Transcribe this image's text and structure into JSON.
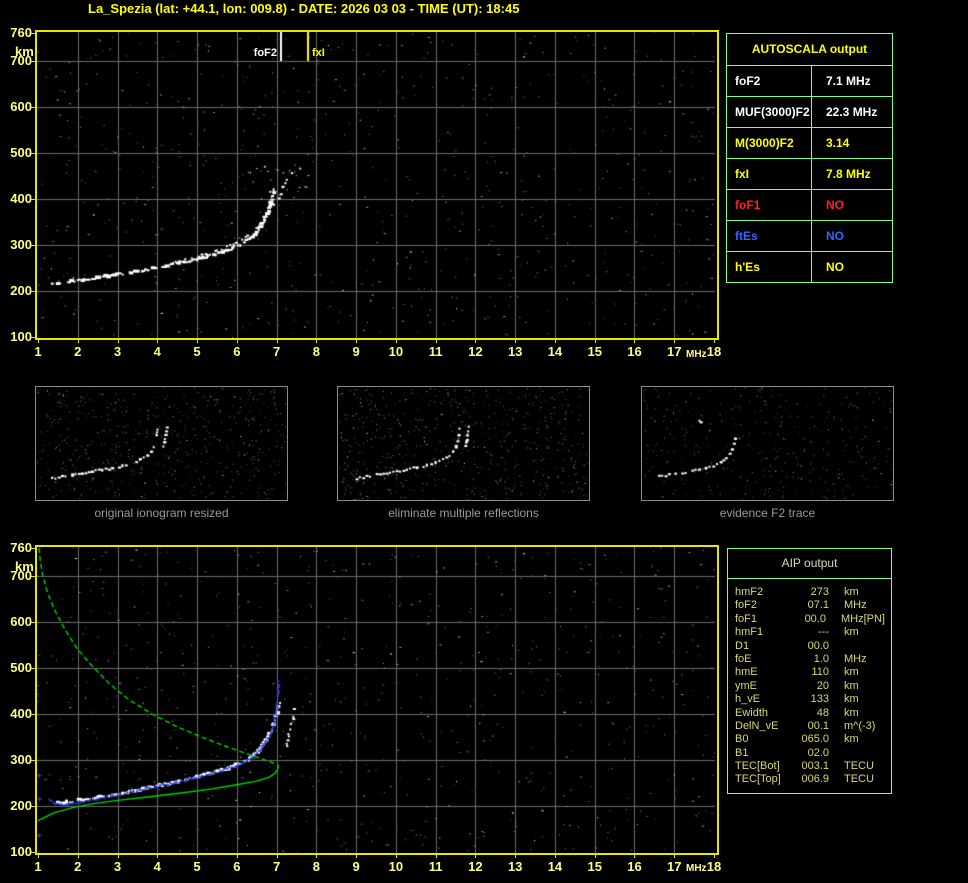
{
  "title": "La_Spezia (lat: +44.1, lon: 009.8) - DATE: 2026 03 03 - TIME (UT): 18:45",
  "colors": {
    "background": "#000000",
    "title_yellow": "#ffff00",
    "axis_border_yellow": "#e6e600",
    "axis_label_yellow": "#ffff80",
    "grid_gray": "#6a6a6a",
    "trace_white": "#ffffff",
    "trace_blue": "#2a3bf0",
    "profile_green": "#00d400",
    "table_border_green": "#80ff80",
    "aip_text_khaki": "#d8d873",
    "aip_header_gray": "#d6d6bc",
    "panel_border_gray": "#8c8c8c",
    "caption_gray": "#9a9a9a",
    "status_red": "#ff2020",
    "status_blue": "#3366ff"
  },
  "autoscala_table": {
    "header": "AUTOSCALA output",
    "rows": [
      {
        "param": "foF2",
        "value": "7.1 MHz",
        "color": "#ffffff"
      },
      {
        "param": "MUF(3000)F2",
        "value": "22.3 MHz",
        "color": "#ffffff"
      },
      {
        "param": "M(3000)F2",
        "value": "3.14",
        "color": "#ffff00"
      },
      {
        "param": "fxI",
        "value": "7.8 MHz",
        "color": "#ffff00"
      },
      {
        "param": "foF1",
        "value": "NO",
        "color": "#ff2020"
      },
      {
        "param": "ftEs",
        "value": "NO",
        "color": "#3366ff"
      },
      {
        "param": "h'Es",
        "value": "NO",
        "color": "#ffff00"
      }
    ]
  },
  "aip_table": {
    "header": "AIP output",
    "rows": [
      {
        "param": "hmF2",
        "value": "273",
        "unit": "km",
        "extra": ""
      },
      {
        "param": "foF2",
        "value": "07.1",
        "unit": "MHz",
        "extra": ""
      },
      {
        "param": "foF1",
        "value": "00.0",
        "unit": "MHz",
        "extra": "[PN]"
      },
      {
        "param": "hmF1",
        "value": "---",
        "unit": "km",
        "extra": ""
      },
      {
        "param": "D1",
        "value": "00.0",
        "unit": "",
        "extra": ""
      },
      {
        "param": "foE",
        "value": "1.0",
        "unit": "MHz",
        "extra": ""
      },
      {
        "param": "hmE",
        "value": "110",
        "unit": "km",
        "extra": ""
      },
      {
        "param": "ymE",
        "value": "20",
        "unit": "km",
        "extra": ""
      },
      {
        "param": "h_vE",
        "value": "133",
        "unit": "km",
        "extra": ""
      },
      {
        "param": "Ewidth",
        "value": "48",
        "unit": "km",
        "extra": ""
      },
      {
        "param": "DelN_vE",
        "value": "00.1",
        "unit": "m^(-3)",
        "extra": ""
      },
      {
        "param": "B0",
        "value": "065.0",
        "unit": "km",
        "extra": ""
      },
      {
        "param": "B1",
        "value": "02.0",
        "unit": "",
        "extra": ""
      },
      {
        "param": "TEC[Bot]",
        "value": "003.1",
        "unit": "TECU",
        "extra": ""
      },
      {
        "param": "TEC[Top]",
        "value": "006.9",
        "unit": "TECU",
        "extra": ""
      }
    ]
  },
  "panels": [
    {
      "caption": "original ionogram resized",
      "seed": 11,
      "noise_count": 560,
      "trace": [
        [
          0.06,
          0.8
        ],
        [
          0.1,
          0.785
        ],
        [
          0.14,
          0.77
        ],
        [
          0.18,
          0.755
        ],
        [
          0.22,
          0.74
        ],
        [
          0.26,
          0.725
        ],
        [
          0.3,
          0.71
        ],
        [
          0.34,
          0.69
        ],
        [
          0.38,
          0.665
        ],
        [
          0.41,
          0.635
        ],
        [
          0.44,
          0.6
        ],
        [
          0.455,
          0.56
        ],
        [
          0.465,
          0.52
        ],
        [
          0.472,
          0.47
        ],
        [
          0.477,
          0.42
        ],
        [
          0.48,
          0.36
        ]
      ],
      "trace2": [
        [
          0.5,
          0.54
        ],
        [
          0.507,
          0.48
        ],
        [
          0.512,
          0.42
        ],
        [
          0.517,
          0.35
        ]
      ]
    },
    {
      "caption": "eliminate multiple reflections",
      "seed": 23,
      "noise_count": 640,
      "trace": [
        [
          0.07,
          0.8
        ],
        [
          0.11,
          0.785
        ],
        [
          0.15,
          0.77
        ],
        [
          0.19,
          0.755
        ],
        [
          0.23,
          0.74
        ],
        [
          0.27,
          0.722
        ],
        [
          0.31,
          0.705
        ],
        [
          0.35,
          0.685
        ],
        [
          0.385,
          0.66
        ],
        [
          0.415,
          0.63
        ],
        [
          0.44,
          0.6
        ],
        [
          0.455,
          0.56
        ],
        [
          0.465,
          0.52
        ],
        [
          0.472,
          0.47
        ],
        [
          0.477,
          0.42
        ],
        [
          0.48,
          0.36
        ]
      ],
      "trace2": [
        [
          0.5,
          0.54
        ],
        [
          0.507,
          0.48
        ],
        [
          0.512,
          0.42
        ],
        [
          0.517,
          0.35
        ]
      ]
    },
    {
      "caption": "evidence F2 trace",
      "seed": 37,
      "noise_count": 360,
      "trace": [
        [
          0.05,
          0.79
        ],
        [
          0.09,
          0.775
        ],
        [
          0.13,
          0.76
        ],
        [
          0.17,
          0.745
        ],
        [
          0.21,
          0.73
        ],
        [
          0.25,
          0.71
        ],
        [
          0.28,
          0.688
        ],
        [
          0.31,
          0.66
        ],
        [
          0.33,
          0.625
        ],
        [
          0.345,
          0.585
        ],
        [
          0.355,
          0.545
        ],
        [
          0.362,
          0.5
        ],
        [
          0.367,
          0.45
        ],
        [
          0.371,
          0.4
        ]
      ],
      "trace2": [
        [
          0.225,
          0.285
        ],
        [
          0.23,
          0.3
        ]
      ]
    }
  ],
  "chart_data": [
    {
      "id": "top_ionogram",
      "type": "scatter",
      "description": "Recorded ionogram: virtual height vs sounding frequency with AUTOSCALA foF2/fxI markers",
      "xlabel": "MHz",
      "ylabel": "km",
      "xlim": [
        1,
        18
      ],
      "ylim": [
        100,
        760
      ],
      "x_ticks": [
        1,
        2,
        3,
        4,
        5,
        6,
        7,
        8,
        9,
        10,
        11,
        12,
        13,
        14,
        15,
        16,
        17,
        18
      ],
      "y_ticks": [
        760,
        700,
        600,
        500,
        400,
        300,
        200,
        100
      ],
      "grid": true,
      "noise_seed": 42,
      "noise_count": 700,
      "clusters": [
        {
          "seed": 5,
          "count": 26,
          "f": [
            6.2,
            7.8
          ],
          "km": [
            400,
            480
          ]
        }
      ],
      "markers": [
        {
          "label": "foF2",
          "x": 7.1,
          "color": "#ffffff",
          "len": 29
        },
        {
          "label": "fxI",
          "x": 7.8,
          "color": "#ffff00",
          "len": 29
        }
      ],
      "series": [
        {
          "name": "F2 echo trace (ordinary)",
          "style": "band",
          "color": "#ffffff",
          "points": [
            [
              1.35,
              216
            ],
            [
              1.55,
              218
            ],
            [
              1.8,
              221
            ],
            [
              2.1,
              224
            ],
            [
              2.4,
              228
            ],
            [
              2.7,
              232
            ],
            [
              3.0,
              236
            ],
            [
              3.3,
              240
            ],
            [
              3.6,
              244
            ],
            [
              3.9,
              249
            ],
            [
              4.2,
              254
            ],
            [
              4.5,
              259
            ],
            [
              4.8,
              265
            ],
            [
              5.1,
              271
            ],
            [
              5.4,
              278
            ],
            [
              5.7,
              286
            ],
            [
              5.95,
              295
            ],
            [
              6.2,
              306
            ],
            [
              6.4,
              319
            ],
            [
              6.55,
              333
            ],
            [
              6.68,
              350
            ],
            [
              6.78,
              369
            ],
            [
              6.85,
              389
            ],
            [
              6.9,
              406
            ],
            [
              6.94,
              418
            ]
          ]
        },
        {
          "name": "F2 echo trace (extraordinary)",
          "style": "band-thin",
          "color": "#ffffff",
          "points": [
            [
              4.4,
              262
            ],
            [
              4.8,
              270
            ],
            [
              5.2,
              279
            ],
            [
              5.6,
              290
            ],
            [
              5.9,
              301
            ],
            [
              6.2,
              315
            ],
            [
              6.45,
              331
            ],
            [
              6.65,
              350
            ],
            [
              6.85,
              373
            ],
            [
              7.0,
              395
            ],
            [
              7.12,
              418
            ],
            [
              7.25,
              440
            ],
            [
              7.4,
              455
            ]
          ]
        }
      ]
    },
    {
      "id": "bottom_ionogram",
      "type": "scatter",
      "description": "AIP result: ionogram trace, restored trace (blue) and electron density profile (green)",
      "xlabel": "MHz",
      "ylabel": "km",
      "xlim": [
        1,
        18
      ],
      "ylim": [
        100,
        760
      ],
      "x_ticks": [
        1,
        2,
        3,
        4,
        5,
        6,
        7,
        8,
        9,
        10,
        11,
        12,
        13,
        14,
        15,
        16,
        17,
        18
      ],
      "y_ticks": [
        760,
        700,
        600,
        500,
        400,
        300,
        200,
        100
      ],
      "grid": true,
      "noise_seed": 77,
      "noise_count": 700,
      "clusters": [],
      "markers": [],
      "series": [
        {
          "name": "F2 echo trace (ordinary)",
          "style": "band",
          "color": "#ffffff",
          "points": [
            [
              1.5,
              206
            ],
            [
              1.8,
              209
            ],
            [
              2.1,
              213
            ],
            [
              2.4,
              217
            ],
            [
              2.7,
              221
            ],
            [
              3.0,
              226
            ],
            [
              3.3,
              231
            ],
            [
              3.6,
              236
            ],
            [
              3.9,
              241
            ],
            [
              4.2,
              247
            ],
            [
              4.5,
              253
            ],
            [
              4.8,
              259
            ],
            [
              5.1,
              265
            ],
            [
              5.4,
              272
            ],
            [
              5.7,
              280
            ],
            [
              6.0,
              289
            ],
            [
              6.25,
              300
            ],
            [
              6.45,
              313
            ],
            [
              6.62,
              328
            ],
            [
              6.76,
              345
            ],
            [
              6.87,
              364
            ],
            [
              6.95,
              385
            ],
            [
              7.02,
              405
            ],
            [
              7.08,
              422
            ]
          ]
        },
        {
          "name": "F2 echo trace (extraordinary)",
          "style": "band-thin",
          "color": "#ffffff",
          "points": [
            [
              7.25,
              330
            ],
            [
              7.3,
              350
            ],
            [
              7.36,
              372
            ],
            [
              7.42,
              395
            ],
            [
              7.45,
              412
            ]
          ]
        },
        {
          "name": "restored trace",
          "style": "dots",
          "color": "#2a3bf0",
          "points": [
            [
              1.28,
              212
            ],
            [
              1.38,
              207
            ],
            [
              1.5,
              204
            ],
            [
              1.65,
              203
            ],
            [
              1.8,
              204
            ],
            [
              2.0,
              207
            ],
            [
              2.2,
              211
            ],
            [
              2.45,
              215
            ],
            [
              2.7,
              219
            ],
            [
              3.0,
              224
            ],
            [
              3.3,
              229
            ],
            [
              3.6,
              235
            ],
            [
              3.9,
              240
            ],
            [
              4.2,
              246
            ],
            [
              4.5,
              252
            ],
            [
              4.8,
              258
            ],
            [
              5.1,
              264
            ],
            [
              5.4,
              271
            ],
            [
              5.7,
              279
            ],
            [
              6.0,
              288
            ],
            [
              6.25,
              299
            ],
            [
              6.45,
              311
            ],
            [
              6.62,
              325
            ],
            [
              6.76,
              342
            ],
            [
              6.87,
              361
            ],
            [
              6.95,
              383
            ],
            [
              7.0,
              408
            ],
            [
              7.03,
              433
            ],
            [
              7.05,
              458
            ],
            [
              7.06,
              470
            ]
          ]
        },
        {
          "name": "scaled points",
          "style": "plus",
          "color": "#2a3bf0",
          "points": [
            [
              1.02,
              267
            ],
            [
              1.03,
              216
            ],
            [
              1.02,
              137
            ]
          ]
        },
        {
          "name": "electron density profile topside",
          "style": "line-dash",
          "color": "#00d400",
          "points": [
            [
              1.03,
              760
            ],
            [
              1.06,
              730
            ],
            [
              1.12,
              700
            ],
            [
              1.25,
              660
            ],
            [
              1.45,
              620
            ],
            [
              1.7,
              580
            ],
            [
              2.0,
              540
            ],
            [
              2.35,
              505
            ],
            [
              2.8,
              465
            ],
            [
              3.3,
              430
            ],
            [
              3.9,
              398
            ],
            [
              4.5,
              372
            ],
            [
              5.1,
              350
            ],
            [
              5.7,
              330
            ],
            [
              6.2,
              315
            ],
            [
              6.6,
              303
            ],
            [
              6.9,
              294
            ],
            [
              7.05,
              288
            ]
          ]
        },
        {
          "name": "electron density profile bottomside",
          "style": "line",
          "color": "#00d400",
          "points": [
            [
              7.05,
              288
            ],
            [
              7.02,
              278
            ],
            [
              6.95,
              270
            ],
            [
              6.8,
              262
            ],
            [
              6.5,
              254
            ],
            [
              6.0,
              246
            ],
            [
              5.3,
              236
            ],
            [
              4.5,
              227
            ],
            [
              3.7,
              219
            ],
            [
              3.0,
              212
            ],
            [
              2.4,
              205
            ],
            [
              1.9,
              197
            ],
            [
              1.4,
              185
            ],
            [
              1.0,
              168
            ]
          ]
        }
      ]
    }
  ]
}
